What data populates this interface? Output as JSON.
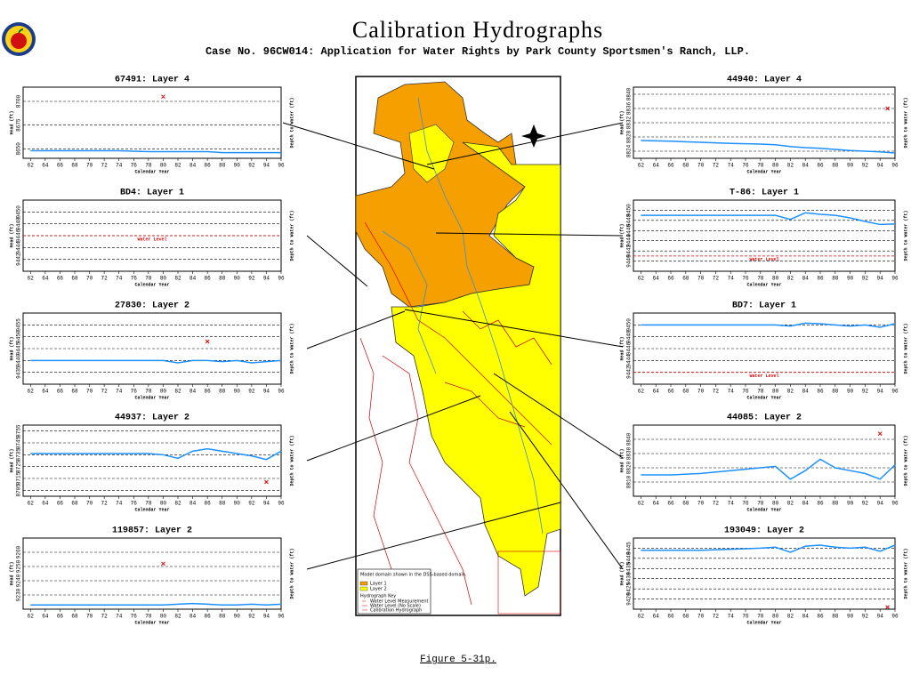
{
  "header": {
    "title": "Calibration Hydrographs",
    "subtitle": "Case No. 96CW014: Application for Water Rights by Park County Sportsmen's Ranch, LLP."
  },
  "caption": "Figure 5-31p.",
  "map": {
    "domain_note": "Model domain shown in the DSS-based domain.",
    "layers": [
      "Layer 1",
      "Layer 2"
    ],
    "key_title": "Hydrograph Key",
    "key_items": [
      "Water Level Measurement",
      "Water Level (No Scale)",
      "Calibration Hydrograph"
    ]
  },
  "chart_data": [
    {
      "type": "line",
      "title": "67491: Layer 4",
      "xlabel": "Calendar Year",
      "ylabel": "Head (ft)",
      "y2label": "Depth to Water (ft)",
      "xlim": [
        61,
        96
      ],
      "xticks": [
        62,
        64,
        66,
        68,
        70,
        72,
        74,
        76,
        78,
        80,
        82,
        84,
        86,
        88,
        90,
        92,
        94,
        96
      ],
      "ylim": [
        8640,
        8715
      ],
      "yticks": [
        8650,
        8675,
        8700
      ],
      "series": [
        {
          "color": "#1e90ff",
          "x": [
            62,
            66,
            70,
            74,
            78,
            80,
            82,
            84,
            86,
            88,
            90,
            92,
            94,
            96
          ],
          "values": [
            8648,
            8648,
            8648,
            8648,
            8647,
            8647,
            8647,
            8647,
            8647,
            8646,
            8646,
            8646,
            8646,
            8646
          ]
        },
        {
          "color": "#e00000",
          "marker": "x",
          "x": [
            80
          ],
          "values": [
            8705
          ]
        }
      ]
    },
    {
      "type": "line",
      "title": "BD4: Layer 1",
      "xlabel": "Calendar Year",
      "ylabel": "Head (ft)",
      "y2label": "Depth to Water (ft)",
      "xlim": [
        61,
        96
      ],
      "xticks": [
        62,
        64,
        66,
        68,
        70,
        72,
        74,
        76,
        78,
        80,
        82,
        84,
        86,
        88,
        90,
        92,
        94,
        96
      ],
      "ylim": [
        9440,
        9452
      ],
      "yticks": [
        9442,
        9444,
        9446,
        9448,
        9450
      ],
      "reference_lines": [
        {
          "label": "Water Level",
          "value": 9446,
          "color": "#e00000"
        }
      ],
      "series": []
    },
    {
      "type": "line",
      "title": "27830: Layer 2",
      "xlabel": "Calendar Year",
      "ylabel": "Head (ft)",
      "y2label": "Depth to Water (ft)",
      "xlim": [
        61,
        96
      ],
      "xticks": [
        62,
        64,
        66,
        68,
        70,
        72,
        74,
        76,
        78,
        80,
        82,
        84,
        86,
        88,
        90,
        92,
        94,
        96
      ],
      "ylim": [
        9430,
        9460
      ],
      "yticks": [
        9435,
        9440,
        9445,
        9450,
        9455
      ],
      "series": [
        {
          "color": "#1e90ff",
          "x": [
            62,
            66,
            70,
            74,
            78,
            80,
            82,
            84,
            86,
            88,
            90,
            92,
            94,
            96
          ],
          "values": [
            9440,
            9440,
            9440,
            9440,
            9440,
            9440,
            9439,
            9440,
            9440,
            9439.5,
            9440,
            9439,
            9439.5,
            9440
          ]
        },
        {
          "color": "#e00000",
          "marker": "x",
          "x": [
            86
          ],
          "values": [
            9448
          ]
        }
      ]
    },
    {
      "type": "line",
      "title": "44937: Layer 2",
      "xlabel": "Calendar Year",
      "ylabel": "Head (ft)",
      "y2label": "Depth to Water (ft)",
      "xlim": [
        61,
        96
      ],
      "xticks": [
        62,
        64,
        66,
        68,
        70,
        72,
        74,
        76,
        78,
        80,
        82,
        84,
        86,
        88,
        90,
        92,
        94,
        96
      ],
      "ylim": [
        8700,
        8760
      ],
      "yticks": [
        8705,
        8715,
        8725,
        8735,
        8745,
        8755
      ],
      "series": [
        {
          "color": "#1e90ff",
          "x": [
            62,
            66,
            70,
            74,
            78,
            80,
            82,
            84,
            86,
            88,
            90,
            92,
            94,
            96
          ],
          "values": [
            8736,
            8736,
            8736,
            8736,
            8736,
            8735,
            8732,
            8738,
            8740,
            8738,
            8736,
            8734,
            8731,
            8738
          ]
        },
        {
          "color": "#e00000",
          "marker": "x",
          "x": [
            94
          ],
          "values": [
            8712
          ]
        }
      ]
    },
    {
      "type": "line",
      "title": "119857: Layer 2",
      "xlabel": "Calendar Year",
      "ylabel": "Head (ft)",
      "y2label": "Depth to Water (ft)",
      "xlim": [
        61,
        96
      ],
      "xticks": [
        62,
        64,
        66,
        68,
        70,
        72,
        74,
        76,
        78,
        80,
        82,
        84,
        86,
        88,
        90,
        92,
        94,
        96
      ],
      "ylim": [
        9220,
        9270
      ],
      "yticks": [
        9230,
        9240,
        9250,
        9260
      ],
      "series": [
        {
          "color": "#1e90ff",
          "x": [
            62,
            66,
            70,
            74,
            78,
            80,
            82,
            84,
            86,
            88,
            90,
            92,
            94,
            96
          ],
          "values": [
            9223,
            9223,
            9223,
            9223,
            9223,
            9223,
            9223.5,
            9224,
            9223.5,
            9223,
            9223,
            9223.5,
            9223,
            9223.5
          ]
        },
        {
          "color": "#e00000",
          "marker": "x",
          "x": [
            80
          ],
          "values": [
            9252
          ]
        }
      ]
    },
    {
      "type": "line",
      "title": "44940: Layer 4",
      "xlabel": "Calendar Year",
      "ylabel": "Head (ft)",
      "y2label": "Depth to Water (ft)",
      "xlim": [
        61,
        96
      ],
      "xticks": [
        62,
        64,
        66,
        68,
        70,
        72,
        74,
        76,
        78,
        80,
        82,
        84,
        86,
        88,
        90,
        92,
        94,
        96
      ],
      "ylim": [
        8822,
        8842
      ],
      "yticks": [
        8824,
        8828,
        8832,
        8836,
        8840
      ],
      "series": [
        {
          "color": "#1e90ff",
          "x": [
            62,
            66,
            70,
            74,
            78,
            80,
            82,
            84,
            86,
            88,
            90,
            92,
            94,
            96
          ],
          "values": [
            8827,
            8826.8,
            8826.5,
            8826.2,
            8826,
            8825.8,
            8825.3,
            8825,
            8824.8,
            8824.5,
            8824.2,
            8824,
            8823.8,
            8823.5
          ]
        },
        {
          "color": "#e00000",
          "marker": "x",
          "x": [
            95
          ],
          "values": [
            8836
          ]
        }
      ]
    },
    {
      "type": "line",
      "title": "T-86: Layer 1",
      "xlabel": "Calendar Year",
      "ylabel": "Head (ft)",
      "y2label": "Depth to Water (ft)",
      "xlim": [
        61,
        96
      ],
      "xticks": [
        62,
        64,
        66,
        68,
        70,
        72,
        74,
        76,
        78,
        80,
        82,
        84,
        86,
        88,
        90,
        92,
        94,
        96
      ],
      "ylim": [
        9438,
        9452
      ],
      "yticks": [
        9440,
        9442,
        9444,
        9446,
        9448,
        9450
      ],
      "reference_lines": [
        {
          "label": "Water Level",
          "value": 9441,
          "color": "#e00000"
        }
      ],
      "series": [
        {
          "color": "#1e90ff",
          "x": [
            62,
            66,
            70,
            74,
            78,
            80,
            82,
            84,
            86,
            88,
            90,
            92,
            94,
            96
          ],
          "values": [
            9449,
            9449,
            9449,
            9449,
            9449,
            9449,
            9448.2,
            9449.5,
            9449.2,
            9449,
            9448.5,
            9447.8,
            9447.2,
            9447.3
          ]
        }
      ]
    },
    {
      "type": "line",
      "title": "BD7: Layer 1",
      "xlabel": "Calendar Year",
      "ylabel": "Head (ft)",
      "y2label": "Depth to Water (ft)",
      "xlim": [
        61,
        96
      ],
      "xticks": [
        62,
        64,
        66,
        68,
        70,
        72,
        74,
        76,
        78,
        80,
        82,
        84,
        86,
        88,
        90,
        92,
        94,
        96
      ],
      "ylim": [
        9440,
        9452
      ],
      "yticks": [
        9442,
        9444,
        9446,
        9448,
        9450
      ],
      "reference_lines": [
        {
          "label": "Water Level",
          "value": 9442,
          "color": "#e00000"
        }
      ],
      "series": [
        {
          "color": "#1e90ff",
          "x": [
            62,
            66,
            70,
            74,
            78,
            80,
            82,
            84,
            86,
            88,
            90,
            92,
            94,
            96
          ],
          "values": [
            9450,
            9450,
            9450,
            9450,
            9450,
            9450,
            9449.8,
            9450.3,
            9450.2,
            9450,
            9449.8,
            9450,
            9449.6,
            9450.2
          ]
        }
      ]
    },
    {
      "type": "line",
      "title": "44085: Layer 2",
      "xlabel": "Calendar Year",
      "ylabel": "Head (ft)",
      "y2label": "Depth to Water (ft)",
      "xlim": [
        61,
        96
      ],
      "xticks": [
        62,
        64,
        66,
        68,
        70,
        72,
        74,
        76,
        78,
        80,
        82,
        84,
        86,
        88,
        90,
        92,
        94,
        96
      ],
      "ylim": [
        8800,
        8850
      ],
      "yticks": [
        8810,
        8820,
        8830,
        8840
      ],
      "series": [
        {
          "color": "#1e90ff",
          "x": [
            62,
            66,
            70,
            74,
            78,
            80,
            82,
            84,
            86,
            88,
            90,
            92,
            94,
            96
          ],
          "values": [
            8815,
            8815,
            8816,
            8818,
            8820,
            8821,
            8812,
            8818,
            8826,
            8820,
            8818,
            8816,
            8812,
            8822
          ]
        },
        {
          "color": "#e00000",
          "marker": "x",
          "x": [
            94
          ],
          "values": [
            8844
          ]
        }
      ]
    },
    {
      "type": "line",
      "title": "193049: Layer 2",
      "xlabel": "Calendar Year",
      "ylabel": "Head (ft)",
      "y2label": "Depth to Water (ft)",
      "xlim": [
        61,
        96
      ],
      "xticks": [
        62,
        64,
        66,
        68,
        70,
        72,
        74,
        76,
        78,
        80,
        82,
        84,
        86,
        88,
        90,
        92,
        94,
        96
      ],
      "ylim": [
        9415,
        9450
      ],
      "yticks": [
        9420,
        9425,
        9430,
        9435,
        9440,
        9445
      ],
      "series": [
        {
          "color": "#1e90ff",
          "x": [
            62,
            66,
            70,
            74,
            78,
            80,
            82,
            84,
            86,
            88,
            90,
            92,
            94,
            96
          ],
          "values": [
            9444,
            9444,
            9444,
            9444.5,
            9445,
            9445.5,
            9443,
            9446,
            9446.5,
            9445.5,
            9445,
            9445.5,
            9443.5,
            9446.5
          ]
        },
        {
          "color": "#e00000",
          "marker": "x",
          "x": [
            95
          ],
          "values": [
            9416
          ]
        }
      ]
    }
  ]
}
